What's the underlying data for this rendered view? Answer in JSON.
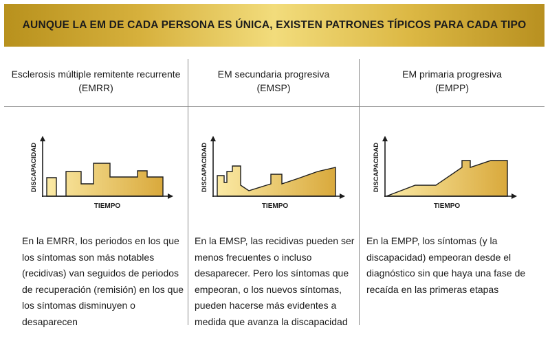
{
  "banner": {
    "title": "AUNQUE LA EM DE CADA PERSONA ES ÚNICA, EXISTEN PATRONES TÍPICOS PARA CADA TIPO"
  },
  "colors": {
    "fill_light": "#fbeaa5",
    "fill_dark": "#d9a93c",
    "stroke": "#1c1c1c",
    "banner": "#d6b03c"
  },
  "columns": [
    {
      "head_line1": "Esclerosis múltiple remitente recurrente",
      "head_line2": "(EMRR)",
      "y_label": "DISCAPACIDAD",
      "x_label": "TIEMPO",
      "desc": [
        "En la EMRR, los periodos en los que",
        "los síntomas son más notables",
        "(recidivas) van seguidos de periodos",
        "de recuperación (remisión) en los que",
        "los síntomas disminuyen o",
        "desaparecen"
      ]
    },
    {
      "head_line1": "EM secundaria progresiva",
      "head_line2": "(EMSP)",
      "y_label": "DISCAPACIDAD",
      "x_label": "TIEMPO",
      "desc": [
        "En la EMSP, las recidivas pueden ser",
        "menos frecuentes o incluso",
        "desaparecer. Pero los síntomas que",
        "empeoran, o los nuevos síntomas,",
        "pueden hacerse más evidentes a",
        "medida que avanza la discapacidad"
      ]
    },
    {
      "head_line1": "EM primaria progresiva",
      "head_line2": "(EMPP)",
      "y_label": "DISCAPACIDAD",
      "x_label": "TIEMPO",
      "desc": [
        "En la EMPP, los síntomas (y la",
        "discapacidad) empeoran desde el",
        "diagnóstico sin que haya una fase de",
        "recaída en las primeras etapas"
      ]
    }
  ]
}
